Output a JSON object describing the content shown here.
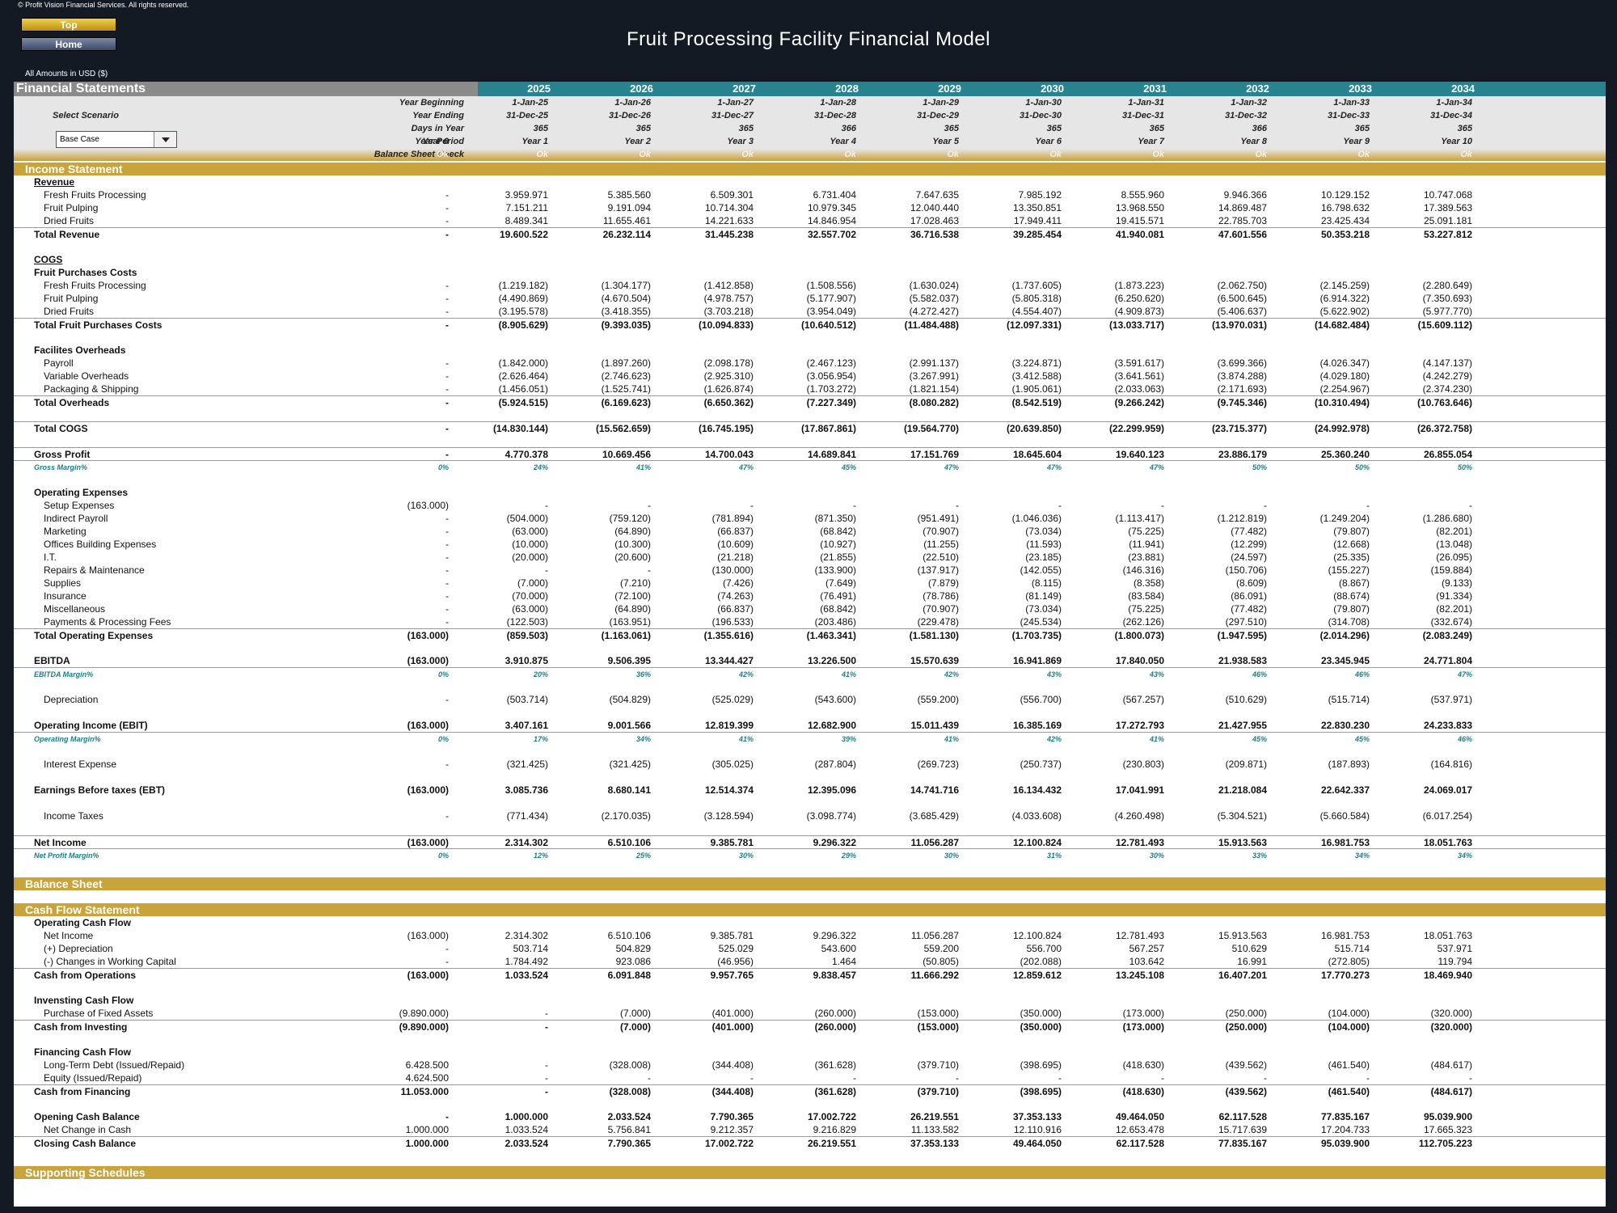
{
  "copyright": "© Profit Vision Financial Services. All rights reserved.",
  "nav": {
    "top_label": "Top",
    "home_label": "Home"
  },
  "title": "Fruit Processing Facility Financial Model",
  "amounts_note": "All Amounts in  USD ($)",
  "fs_header": "Financial Statements",
  "scenario": {
    "label": "Select Scenario",
    "value": "Base Case"
  },
  "columns": {
    "years": [
      "",
      "2025",
      "2026",
      "2027",
      "2028",
      "2029",
      "2030",
      "2031",
      "2032",
      "2033",
      "2034"
    ],
    "year_beginning": [
      "",
      "1-Jan-25",
      "1-Jan-26",
      "1-Jan-27",
      "1-Jan-28",
      "1-Jan-29",
      "1-Jan-30",
      "1-Jan-31",
      "1-Jan-32",
      "1-Jan-33",
      "1-Jan-34"
    ],
    "year_ending": [
      "",
      "31-Dec-25",
      "31-Dec-26",
      "31-Dec-27",
      "31-Dec-28",
      "31-Dec-29",
      "31-Dec-30",
      "31-Dec-31",
      "31-Dec-32",
      "31-Dec-33",
      "31-Dec-34"
    ],
    "days_in_year": [
      "",
      "365",
      "365",
      "365",
      "366",
      "365",
      "365",
      "365",
      "366",
      "365",
      "365"
    ],
    "year_period": [
      "Year 0",
      "Year 1",
      "Year 2",
      "Year 3",
      "Year 4",
      "Year 5",
      "Year 6",
      "Year 7",
      "Year 8",
      "Year 9",
      "Year 10"
    ],
    "balance_check": [
      "Ok",
      "Ok",
      "Ok",
      "Ok",
      "Ok",
      "Ok",
      "Ok",
      "Ok",
      "Ok",
      "Ok",
      "Ok"
    ]
  },
  "header_labels": {
    "year_beginning": "Year Beginning",
    "year_ending": "Year Ending",
    "days_in_year": "Days in Year",
    "year_period": "Year Period",
    "balance_check": "Balance Sheet Check"
  },
  "sections": {
    "income": "Income Statement",
    "balance": "Balance Sheet",
    "cashflow": "Cash Flow Statement",
    "supporting": "Supporting Schedules"
  },
  "income_rows": [
    {
      "label": "Revenue",
      "style": "bold underline",
      "values": []
    },
    {
      "label": "Fresh Fruits Processing",
      "style": "indent",
      "values": [
        "-",
        "3.959.971",
        "5.385.560",
        "6.509.301",
        "6.731.404",
        "7.647.635",
        "7.985.192",
        "8.555.960",
        "9.946.366",
        "10.129.152",
        "10.747.068"
      ]
    },
    {
      "label": "Fruit Pulping",
      "style": "indent",
      "values": [
        "-",
        "7.151.211",
        "9.191.094",
        "10.714.304",
        "10.979.345",
        "12.040.440",
        "13.350.851",
        "13.968.550",
        "14.869.487",
        "16.798.632",
        "17.389.563"
      ]
    },
    {
      "label": "Dried Fruits",
      "style": "indent",
      "values": [
        "-",
        "8.489.341",
        "11.655.461",
        "14.221.633",
        "14.846.954",
        "17.028.463",
        "17.949.411",
        "19.415.571",
        "22.785.703",
        "23.425.434",
        "25.091.181"
      ]
    },
    {
      "label": "Total Revenue",
      "style": "bold total",
      "values": [
        "-",
        "19.600.522",
        "26.232.114",
        "31.445.238",
        "32.557.702",
        "36.716.538",
        "39.285.454",
        "41.940.081",
        "47.601.556",
        "50.353.218",
        "53.227.812"
      ]
    },
    {
      "label": "",
      "style": "",
      "values": []
    },
    {
      "label": "COGS",
      "style": "bold underline",
      "values": []
    },
    {
      "label": "Fruit Purchases Costs",
      "style": "bold",
      "values": []
    },
    {
      "label": "Fresh Fruits Processing",
      "style": "indent",
      "values": [
        "-",
        "(1.219.182)",
        "(1.304.177)",
        "(1.412.858)",
        "(1.508.556)",
        "(1.630.024)",
        "(1.737.605)",
        "(1.873.223)",
        "(2.062.750)",
        "(2.145.259)",
        "(2.280.649)"
      ]
    },
    {
      "label": "Fruit Pulping",
      "style": "indent",
      "values": [
        "-",
        "(4.490.869)",
        "(4.670.504)",
        "(4.978.757)",
        "(5.177.907)",
        "(5.582.037)",
        "(5.805.318)",
        "(6.250.620)",
        "(6.500.645)",
        "(6.914.322)",
        "(7.350.693)"
      ]
    },
    {
      "label": "Dried Fruits",
      "style": "indent",
      "values": [
        "-",
        "(3.195.578)",
        "(3.418.355)",
        "(3.703.218)",
        "(3.954.049)",
        "(4.272.427)",
        "(4.554.407)",
        "(4.909.873)",
        "(5.406.637)",
        "(5.622.902)",
        "(5.977.770)"
      ]
    },
    {
      "label": "Total Fruit Purchases Costs",
      "style": "bold total",
      "values": [
        "-",
        "(8.905.629)",
        "(9.393.035)",
        "(10.094.833)",
        "(10.640.512)",
        "(11.484.488)",
        "(12.097.331)",
        "(13.033.717)",
        "(13.970.031)",
        "(14.682.484)",
        "(15.609.112)"
      ]
    },
    {
      "label": "",
      "style": "",
      "values": []
    },
    {
      "label": "Facilites Overheads",
      "style": "bold",
      "values": []
    },
    {
      "label": "Payroll",
      "style": "indent",
      "values": [
        "-",
        "(1.842.000)",
        "(1.897.260)",
        "(2.098.178)",
        "(2.467.123)",
        "(2.991.137)",
        "(3.224.871)",
        "(3.591.617)",
        "(3.699.366)",
        "(4.026.347)",
        "(4.147.137)"
      ]
    },
    {
      "label": "Variable Overheads",
      "style": "indent",
      "values": [
        "-",
        "(2.626.464)",
        "(2.746.623)",
        "(2.925.310)",
        "(3.056.954)",
        "(3.267.991)",
        "(3.412.588)",
        "(3.641.561)",
        "(3.874.288)",
        "(4.029.180)",
        "(4.242.279)"
      ]
    },
    {
      "label": "Packaging & Shipping",
      "style": "indent",
      "values": [
        "-",
        "(1.456.051)",
        "(1.525.741)",
        "(1.626.874)",
        "(1.703.272)",
        "(1.821.154)",
        "(1.905.061)",
        "(2.033.063)",
        "(2.171.693)",
        "(2.254.967)",
        "(2.374.230)"
      ]
    },
    {
      "label": "Total Overheads",
      "style": "bold total",
      "values": [
        "-",
        "(5.924.515)",
        "(6.169.623)",
        "(6.650.362)",
        "(7.227.349)",
        "(8.080.282)",
        "(8.542.519)",
        "(9.266.242)",
        "(9.745.346)",
        "(10.310.494)",
        "(10.763.646)"
      ]
    },
    {
      "label": "",
      "style": "",
      "values": []
    },
    {
      "label": "Total COGS",
      "style": "bold total",
      "values": [
        "-",
        "(14.830.144)",
        "(15.562.659)",
        "(16.745.195)",
        "(17.867.861)",
        "(19.564.770)",
        "(20.639.850)",
        "(22.299.959)",
        "(23.715.377)",
        "(24.992.978)",
        "(26.372.758)"
      ]
    },
    {
      "label": "",
      "style": "",
      "values": []
    },
    {
      "label": "Gross Profit",
      "style": "bold total",
      "values": [
        "-",
        "4.770.378",
        "10.669.456",
        "14.700.043",
        "14.689.841",
        "17.151.769",
        "18.645.604",
        "19.640.123",
        "23.886.179",
        "25.360.240",
        "26.855.054"
      ]
    },
    {
      "label": "Gross Margin%",
      "style": "margin total",
      "values": [
        "0%",
        "24%",
        "41%",
        "47%",
        "45%",
        "47%",
        "47%",
        "47%",
        "50%",
        "50%",
        "50%"
      ]
    },
    {
      "label": "",
      "style": "",
      "values": []
    },
    {
      "label": "Operating Expenses",
      "style": "bold",
      "values": []
    },
    {
      "label": "Setup Expenses",
      "style": "indent",
      "values": [
        "(163.000)",
        "-",
        "-",
        "-",
        "-",
        "-",
        "-",
        "-",
        "-",
        "-",
        "-"
      ]
    },
    {
      "label": "Indirect Payroll",
      "style": "indent",
      "values": [
        "-",
        "(504.000)",
        "(759.120)",
        "(781.894)",
        "(871.350)",
        "(951.491)",
        "(1.046.036)",
        "(1.113.417)",
        "(1.212.819)",
        "(1.249.204)",
        "(1.286.680)"
      ]
    },
    {
      "label": "Marketing",
      "style": "indent",
      "values": [
        "-",
        "(63.000)",
        "(64.890)",
        "(66.837)",
        "(68.842)",
        "(70.907)",
        "(73.034)",
        "(75.225)",
        "(77.482)",
        "(79.807)",
        "(82.201)"
      ]
    },
    {
      "label": "Offices Building Expenses",
      "style": "indent",
      "values": [
        "-",
        "(10.000)",
        "(10.300)",
        "(10.609)",
        "(10.927)",
        "(11.255)",
        "(11.593)",
        "(11.941)",
        "(12.299)",
        "(12.668)",
        "(13.048)"
      ]
    },
    {
      "label": "I.T.",
      "style": "indent",
      "values": [
        "-",
        "(20.000)",
        "(20.600)",
        "(21.218)",
        "(21.855)",
        "(22.510)",
        "(23.185)",
        "(23.881)",
        "(24.597)",
        "(25.335)",
        "(26.095)"
      ]
    },
    {
      "label": "Repairs & Maintenance",
      "style": "indent",
      "values": [
        "-",
        "-",
        "-",
        "(130.000)",
        "(133.900)",
        "(137.917)",
        "(142.055)",
        "(146.316)",
        "(150.706)",
        "(155.227)",
        "(159.884)"
      ]
    },
    {
      "label": "Supplies",
      "style": "indent",
      "values": [
        "-",
        "(7.000)",
        "(7.210)",
        "(7.426)",
        "(7.649)",
        "(7.879)",
        "(8.115)",
        "(8.358)",
        "(8.609)",
        "(8.867)",
        "(9.133)"
      ]
    },
    {
      "label": "Insurance",
      "style": "indent",
      "values": [
        "-",
        "(70.000)",
        "(72.100)",
        "(74.263)",
        "(76.491)",
        "(78.786)",
        "(81.149)",
        "(83.584)",
        "(86.091)",
        "(88.674)",
        "(91.334)"
      ]
    },
    {
      "label": "Miscellaneous",
      "style": "indent",
      "values": [
        "-",
        "(63.000)",
        "(64.890)",
        "(66.837)",
        "(68.842)",
        "(70.907)",
        "(73.034)",
        "(75.225)",
        "(77.482)",
        "(79.807)",
        "(82.201)"
      ]
    },
    {
      "label": "Payments & Processing Fees",
      "style": "indent",
      "values": [
        "-",
        "(122.503)",
        "(163.951)",
        "(196.533)",
        "(203.486)",
        "(229.478)",
        "(245.534)",
        "(262.126)",
        "(297.510)",
        "(314.708)",
        "(332.674)"
      ]
    },
    {
      "label": "Total Operating Expenses",
      "style": "bold total",
      "values": [
        "(163.000)",
        "(859.503)",
        "(1.163.061)",
        "(1.355.616)",
        "(1.463.341)",
        "(1.581.130)",
        "(1.703.735)",
        "(1.800.073)",
        "(1.947.595)",
        "(2.014.296)",
        "(2.083.249)"
      ]
    },
    {
      "label": "",
      "style": "",
      "values": []
    },
    {
      "label": "EBITDA",
      "style": "bold",
      "values": [
        "(163.000)",
        "3.910.875",
        "9.506.395",
        "13.344.427",
        "13.226.500",
        "15.570.639",
        "16.941.869",
        "17.840.050",
        "21.938.583",
        "23.345.945",
        "24.771.804"
      ]
    },
    {
      "label": "EBITDA Margin%",
      "style": "margin total",
      "values": [
        "0%",
        "20%",
        "36%",
        "42%",
        "41%",
        "42%",
        "43%",
        "43%",
        "46%",
        "46%",
        "47%"
      ]
    },
    {
      "label": "",
      "style": "",
      "values": []
    },
    {
      "label": "Depreciation",
      "style": "indent",
      "values": [
        "-",
        "(503.714)",
        "(504.829)",
        "(525.029)",
        "(543.600)",
        "(559.200)",
        "(556.700)",
        "(567.257)",
        "(510.629)",
        "(515.714)",
        "(537.971)"
      ]
    },
    {
      "label": "",
      "style": "",
      "values": []
    },
    {
      "label": "Operating Income (EBIT)",
      "style": "bold",
      "values": [
        "(163.000)",
        "3.407.161",
        "9.001.566",
        "12.819.399",
        "12.682.900",
        "15.011.439",
        "16.385.169",
        "17.272.793",
        "21.427.955",
        "22.830.230",
        "24.233.833"
      ]
    },
    {
      "label": "Operating Margin%",
      "style": "margin total",
      "values": [
        "0%",
        "17%",
        "34%",
        "41%",
        "39%",
        "41%",
        "42%",
        "41%",
        "45%",
        "45%",
        "46%"
      ]
    },
    {
      "label": "",
      "style": "",
      "values": []
    },
    {
      "label": "Interest Expense",
      "style": "indent",
      "values": [
        "-",
        "(321.425)",
        "(321.425)",
        "(305.025)",
        "(287.804)",
        "(269.723)",
        "(250.737)",
        "(230.803)",
        "(209.871)",
        "(187.893)",
        "(164.816)"
      ]
    },
    {
      "label": "",
      "style": "",
      "values": []
    },
    {
      "label": "Earnings Before taxes (EBT)",
      "style": "bold",
      "values": [
        "(163.000)",
        "3.085.736",
        "8.680.141",
        "12.514.374",
        "12.395.096",
        "14.741.716",
        "16.134.432",
        "17.041.991",
        "21.218.084",
        "22.642.337",
        "24.069.017"
      ]
    },
    {
      "label": "",
      "style": "",
      "values": []
    },
    {
      "label": "Income Taxes",
      "style": "indent",
      "values": [
        "-",
        "(771.434)",
        "(2.170.035)",
        "(3.128.594)",
        "(3.098.774)",
        "(3.685.429)",
        "(4.033.608)",
        "(4.260.498)",
        "(5.304.521)",
        "(5.660.584)",
        "(6.017.254)"
      ]
    },
    {
      "label": "",
      "style": "",
      "values": []
    },
    {
      "label": "Net Income",
      "style": "bold total",
      "values": [
        "(163.000)",
        "2.314.302",
        "6.510.106",
        "9.385.781",
        "9.296.322",
        "11.056.287",
        "12.100.824",
        "12.781.493",
        "15.913.563",
        "16.981.753",
        "18.051.763"
      ]
    },
    {
      "label": "Net Profit Margin%",
      "style": "margin total",
      "values": [
        "0%",
        "12%",
        "25%",
        "30%",
        "29%",
        "30%",
        "31%",
        "30%",
        "33%",
        "34%",
        "34%"
      ]
    }
  ],
  "cashflow_rows": [
    {
      "label": "Operating Cash Flow",
      "style": "bold",
      "values": []
    },
    {
      "label": "Net Income",
      "style": "indent",
      "values": [
        "(163.000)",
        "2.314.302",
        "6.510.106",
        "9.385.781",
        "9.296.322",
        "11.056.287",
        "12.100.824",
        "12.781.493",
        "15.913.563",
        "16.981.753",
        "18.051.763"
      ]
    },
    {
      "label": "(+) Depreciation",
      "style": "indent",
      "values": [
        "-",
        "503.714",
        "504.829",
        "525.029",
        "543.600",
        "559.200",
        "556.700",
        "567.257",
        "510.629",
        "515.714",
        "537.971"
      ]
    },
    {
      "label": "(-) Changes in Working Capital",
      "style": "indent",
      "values": [
        "-",
        "1.784.492",
        "923.086",
        "(46.956)",
        "1.464",
        "(50.805)",
        "(202.088)",
        "103.642",
        "16.991",
        "(272.805)",
        "119.794"
      ]
    },
    {
      "label": "Cash from Operations",
      "style": "bold total",
      "values": [
        "(163.000)",
        "1.033.524",
        "6.091.848",
        "9.957.765",
        "9.838.457",
        "11.666.292",
        "12.859.612",
        "13.245.108",
        "16.407.201",
        "17.770.273",
        "18.469.940"
      ]
    },
    {
      "label": "",
      "style": "",
      "values": []
    },
    {
      "label": "Invensting Cash Flow",
      "style": "bold",
      "values": []
    },
    {
      "label": "Purchase of Fixed Assets",
      "style": "indent",
      "values": [
        "(9.890.000)",
        "-",
        "(7.000)",
        "(401.000)",
        "(260.000)",
        "(153.000)",
        "(350.000)",
        "(173.000)",
        "(250.000)",
        "(104.000)",
        "(320.000)"
      ]
    },
    {
      "label": "Cash from Investing",
      "style": "bold total",
      "values": [
        "(9.890.000)",
        "-",
        "(7.000)",
        "(401.000)",
        "(260.000)",
        "(153.000)",
        "(350.000)",
        "(173.000)",
        "(250.000)",
        "(104.000)",
        "(320.000)"
      ]
    },
    {
      "label": "",
      "style": "",
      "values": []
    },
    {
      "label": "Financing Cash Flow",
      "style": "bold",
      "values": []
    },
    {
      "label": "Long-Term Debt (Issued/Repaid)",
      "style": "indent",
      "values": [
        "6.428.500",
        "-",
        "(328.008)",
        "(344.408)",
        "(361.628)",
        "(379.710)",
        "(398.695)",
        "(418.630)",
        "(439.562)",
        "(461.540)",
        "(484.617)"
      ]
    },
    {
      "label": "Equity (Issued/Repaid)",
      "style": "indent",
      "values": [
        "4.624.500",
        "-",
        "-",
        "-",
        "-",
        "-",
        "-",
        "-",
        "-",
        "-",
        "-"
      ]
    },
    {
      "label": "Cash from Financing",
      "style": "bold total",
      "values": [
        "11.053.000",
        "-",
        "(328.008)",
        "(344.408)",
        "(361.628)",
        "(379.710)",
        "(398.695)",
        "(418.630)",
        "(439.562)",
        "(461.540)",
        "(484.617)"
      ]
    },
    {
      "label": "",
      "style": "",
      "values": []
    },
    {
      "label": "Opening Cash Balance",
      "style": "bold",
      "values": [
        "-",
        "1.000.000",
        "2.033.524",
        "7.790.365",
        "17.002.722",
        "26.219.551",
        "37.353.133",
        "49.464.050",
        "62.117.528",
        "77.835.167",
        "95.039.900"
      ]
    },
    {
      "label": "Net Change in Cash",
      "style": "indent",
      "values": [
        "1.000.000",
        "1.033.524",
        "5.756.841",
        "9.212.357",
        "9.216.829",
        "11.133.582",
        "12.110.916",
        "12.653.478",
        "15.717.639",
        "17.204.733",
        "17.665.323"
      ]
    },
    {
      "label": "Closing Cash Balance",
      "style": "bold total",
      "values": [
        "1.000.000",
        "2.033.524",
        "7.790.365",
        "17.002.722",
        "26.219.551",
        "37.353.133",
        "49.464.050",
        "62.117.528",
        "77.835.167",
        "95.039.900",
        "112.705.223"
      ]
    }
  ]
}
